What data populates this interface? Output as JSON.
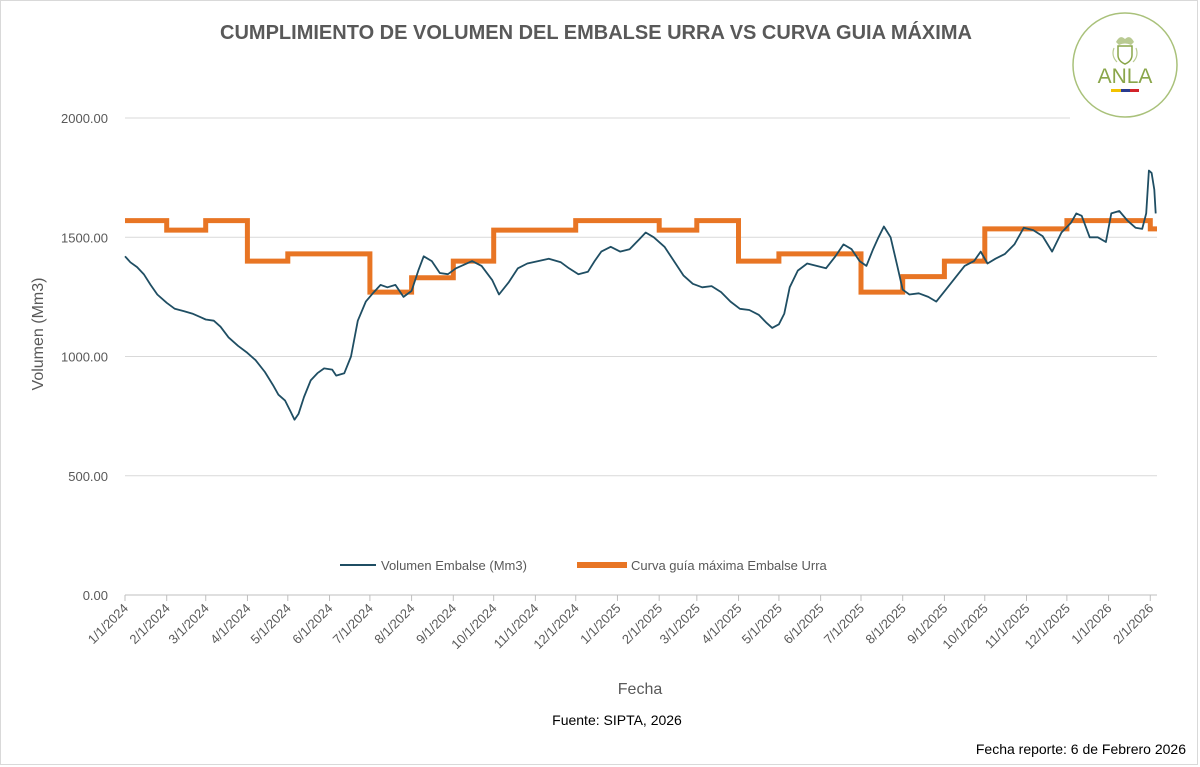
{
  "chart_data": {
    "type": "line",
    "title": "CUMPLIMIENTO DE VOLUMEN DEL EMBALSE URRA VS CURVA GUIA MÁXIMA",
    "xlabel": "Fecha",
    "ylabel": "Volumen (Mm3)",
    "ylim": [
      0,
      2000
    ],
    "yticks": [
      "0.00",
      "500.00",
      "1000.00",
      "1500.00",
      "2000.00"
    ],
    "xlim": [
      "2024-01-01",
      "2026-02-06"
    ],
    "xticks": [
      "1/1/2024",
      "2/1/2024",
      "3/1/2024",
      "4/1/2024",
      "5/1/2024",
      "6/1/2024",
      "7/1/2024",
      "8/1/2024",
      "9/1/2024",
      "10/1/2024",
      "11/1/2024",
      "12/1/2024",
      "1/1/2025",
      "2/1/2025",
      "3/1/2025",
      "4/1/2025",
      "5/1/2025",
      "6/1/2025",
      "7/1/2025",
      "8/1/2025",
      "9/1/2025",
      "10/1/2025",
      "11/1/2025",
      "12/1/2025",
      "1/1/2026",
      "2/1/2026"
    ],
    "grid": "horizontal",
    "legend_position": "bottom",
    "series": [
      {
        "name": "Volumen Embalse (Mm3)",
        "color": "#1f4e63",
        "style": "line",
        "points": [
          [
            "2024-01-01",
            1420
          ],
          [
            "2024-01-05",
            1395
          ],
          [
            "2024-01-10",
            1375
          ],
          [
            "2024-01-15",
            1345
          ],
          [
            "2024-01-20",
            1300
          ],
          [
            "2024-01-25",
            1260
          ],
          [
            "2024-02-01",
            1225
          ],
          [
            "2024-02-07",
            1200
          ],
          [
            "2024-02-14",
            1190
          ],
          [
            "2024-02-20",
            1180
          ],
          [
            "2024-02-26",
            1165
          ],
          [
            "2024-03-01",
            1155
          ],
          [
            "2024-03-07",
            1150
          ],
          [
            "2024-03-12",
            1125
          ],
          [
            "2024-03-18",
            1080
          ],
          [
            "2024-03-25",
            1045
          ],
          [
            "2024-04-01",
            1015
          ],
          [
            "2024-04-07",
            985
          ],
          [
            "2024-04-14",
            935
          ],
          [
            "2024-04-20",
            880
          ],
          [
            "2024-04-24",
            840
          ],
          [
            "2024-04-29",
            815
          ],
          [
            "2024-05-03",
            770
          ],
          [
            "2024-05-06",
            735
          ],
          [
            "2024-05-09",
            760
          ],
          [
            "2024-05-13",
            830
          ],
          [
            "2024-05-18",
            900
          ],
          [
            "2024-05-23",
            930
          ],
          [
            "2024-05-28",
            950
          ],
          [
            "2024-06-03",
            945
          ],
          [
            "2024-06-06",
            920
          ],
          [
            "2024-06-12",
            930
          ],
          [
            "2024-06-17",
            1000
          ],
          [
            "2024-06-22",
            1150
          ],
          [
            "2024-06-28",
            1230
          ],
          [
            "2024-07-04",
            1270
          ],
          [
            "2024-07-09",
            1300
          ],
          [
            "2024-07-14",
            1290
          ],
          [
            "2024-07-20",
            1300
          ],
          [
            "2024-07-26",
            1250
          ],
          [
            "2024-08-01",
            1275
          ],
          [
            "2024-08-06",
            1360
          ],
          [
            "2024-08-10",
            1420
          ],
          [
            "2024-08-16",
            1400
          ],
          [
            "2024-08-22",
            1350
          ],
          [
            "2024-08-28",
            1345
          ],
          [
            "2024-09-03",
            1370
          ],
          [
            "2024-09-09",
            1385
          ],
          [
            "2024-09-15",
            1400
          ],
          [
            "2024-09-22",
            1380
          ],
          [
            "2024-09-30",
            1320
          ],
          [
            "2024-10-05",
            1260
          ],
          [
            "2024-10-12",
            1310
          ],
          [
            "2024-10-19",
            1370
          ],
          [
            "2024-10-26",
            1390
          ],
          [
            "2024-11-03",
            1400
          ],
          [
            "2024-11-11",
            1410
          ],
          [
            "2024-11-20",
            1395
          ],
          [
            "2024-11-26",
            1370
          ],
          [
            "2024-12-03",
            1345
          ],
          [
            "2024-12-10",
            1355
          ],
          [
            "2024-12-15",
            1400
          ],
          [
            "2024-12-20",
            1440
          ],
          [
            "2024-12-27",
            1460
          ],
          [
            "2025-01-03",
            1440
          ],
          [
            "2025-01-10",
            1450
          ],
          [
            "2025-01-17",
            1490
          ],
          [
            "2025-01-22",
            1520
          ],
          [
            "2025-01-28",
            1500
          ],
          [
            "2025-02-05",
            1460
          ],
          [
            "2025-02-12",
            1400
          ],
          [
            "2025-02-19",
            1340
          ],
          [
            "2025-02-26",
            1305
          ],
          [
            "2025-03-05",
            1290
          ],
          [
            "2025-03-12",
            1295
          ],
          [
            "2025-03-19",
            1270
          ],
          [
            "2025-03-26",
            1230
          ],
          [
            "2025-04-02",
            1200
          ],
          [
            "2025-04-09",
            1195
          ],
          [
            "2025-04-16",
            1175
          ],
          [
            "2025-04-22",
            1140
          ],
          [
            "2025-04-26",
            1120
          ],
          [
            "2025-05-01",
            1135
          ],
          [
            "2025-05-05",
            1180
          ],
          [
            "2025-05-09",
            1290
          ],
          [
            "2025-05-15",
            1360
          ],
          [
            "2025-05-22",
            1390
          ],
          [
            "2025-05-29",
            1380
          ],
          [
            "2025-06-05",
            1370
          ],
          [
            "2025-06-12",
            1420
          ],
          [
            "2025-06-18",
            1470
          ],
          [
            "2025-06-24",
            1450
          ],
          [
            "2025-06-30",
            1400
          ],
          [
            "2025-07-05",
            1380
          ],
          [
            "2025-07-10",
            1450
          ],
          [
            "2025-07-14",
            1500
          ],
          [
            "2025-07-18",
            1545
          ],
          [
            "2025-07-23",
            1500
          ],
          [
            "2025-07-28",
            1380
          ],
          [
            "2025-08-01",
            1280
          ],
          [
            "2025-08-06",
            1260
          ],
          [
            "2025-08-13",
            1265
          ],
          [
            "2025-08-20",
            1250
          ],
          [
            "2025-08-26",
            1230
          ],
          [
            "2025-09-02",
            1280
          ],
          [
            "2025-09-09",
            1330
          ],
          [
            "2025-09-16",
            1380
          ],
          [
            "2025-09-23",
            1400
          ],
          [
            "2025-09-28",
            1440
          ],
          [
            "2025-10-03",
            1390
          ],
          [
            "2025-10-09",
            1410
          ],
          [
            "2025-10-16",
            1430
          ],
          [
            "2025-10-23",
            1470
          ],
          [
            "2025-10-30",
            1540
          ],
          [
            "2025-11-06",
            1530
          ],
          [
            "2025-11-13",
            1505
          ],
          [
            "2025-11-20",
            1440
          ],
          [
            "2025-11-27",
            1520
          ],
          [
            "2025-12-04",
            1560
          ],
          [
            "2025-12-08",
            1600
          ],
          [
            "2025-12-12",
            1590
          ],
          [
            "2025-12-18",
            1500
          ],
          [
            "2025-12-24",
            1500
          ],
          [
            "2025-12-30",
            1480
          ],
          [
            "2026-01-03",
            1600
          ],
          [
            "2026-01-09",
            1610
          ],
          [
            "2026-01-15",
            1570
          ],
          [
            "2026-01-21",
            1540
          ],
          [
            "2026-01-26",
            1535
          ],
          [
            "2026-01-29",
            1600
          ],
          [
            "2026-01-31",
            1780
          ],
          [
            "2026-02-02",
            1770
          ],
          [
            "2026-02-04",
            1700
          ],
          [
            "2026-02-05",
            1600
          ]
        ]
      },
      {
        "name": "Curva guía máxima Embalse Urra",
        "color": "#e87524",
        "style": "step",
        "points": [
          [
            "2024-01-01",
            1570
          ],
          [
            "2024-02-01",
            1530
          ],
          [
            "2024-03-01",
            1570
          ],
          [
            "2024-04-01",
            1400
          ],
          [
            "2024-05-01",
            1430
          ],
          [
            "2024-07-01",
            1270
          ],
          [
            "2024-08-01",
            1330
          ],
          [
            "2024-09-01",
            1400
          ],
          [
            "2024-10-01",
            1530
          ],
          [
            "2024-12-01",
            1570
          ],
          [
            "2025-02-01",
            1530
          ],
          [
            "2025-03-01",
            1570
          ],
          [
            "2025-04-01",
            1400
          ],
          [
            "2025-05-01",
            1430
          ],
          [
            "2025-07-01",
            1270
          ],
          [
            "2025-08-01",
            1335
          ],
          [
            "2025-09-01",
            1400
          ],
          [
            "2025-10-01",
            1535
          ],
          [
            "2025-12-01",
            1570
          ],
          [
            "2026-02-01",
            1535
          ],
          [
            "2026-02-06",
            1535
          ]
        ]
      }
    ]
  },
  "source_label": "Fuente: SIPTA, 2026",
  "report_date_label": "Fecha reporte: 6 de Febrero 2026",
  "logo": {
    "text": "ANLA",
    "icon": "coat-of-arms-icon",
    "color": "#8aa64a"
  }
}
